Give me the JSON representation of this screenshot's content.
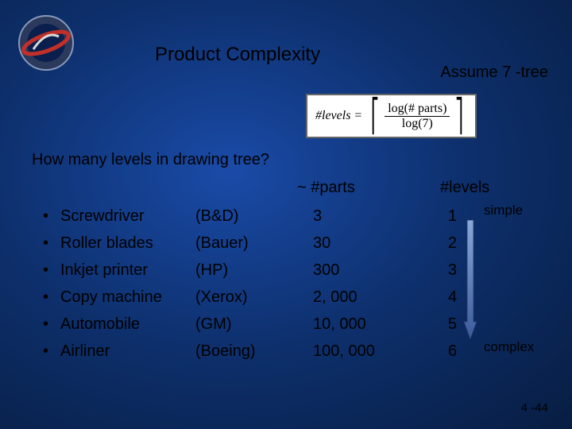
{
  "title": "Product Complexity",
  "assume": "Assume 7 -tree",
  "formula": {
    "lhs": "#levels",
    "numerator": "log(# parts)",
    "denominator": "log(7)"
  },
  "question": "How many levels in drawing tree?",
  "headers": {
    "parts": "~ #parts",
    "levels": "#levels"
  },
  "items": [
    {
      "name": "Screwdriver",
      "maker": "(B&D)",
      "parts": "3",
      "levels": "1"
    },
    {
      "name": "Roller blades",
      "maker": "(Bauer)",
      "parts": "30",
      "levels": "2"
    },
    {
      "name": "Inkjet printer",
      "maker": "(HP)",
      "parts": "300",
      "levels": "3"
    },
    {
      "name": "Copy machine",
      "maker": "(Xerox)",
      "parts": "2, 000",
      "levels": "4"
    },
    {
      "name": "Automobile",
      "maker": "(GM)",
      "parts": "10, 000",
      "levels": "5"
    },
    {
      "name": "Airliner",
      "maker": "(Boeing)",
      "parts": "100, 000",
      "levels": "6"
    }
  ],
  "labels": {
    "simple": "simple",
    "complex": "complex"
  },
  "page": "4 -44",
  "logo": {
    "outer_ring": "#2b3a5c",
    "inner": "#0a1f4d",
    "accent": "#c03028",
    "highlight": "#d8d8d8"
  },
  "arrow_colors": {
    "top": "#8aa8d8",
    "bottom": "#3a5a9a",
    "border": "#233a66"
  }
}
